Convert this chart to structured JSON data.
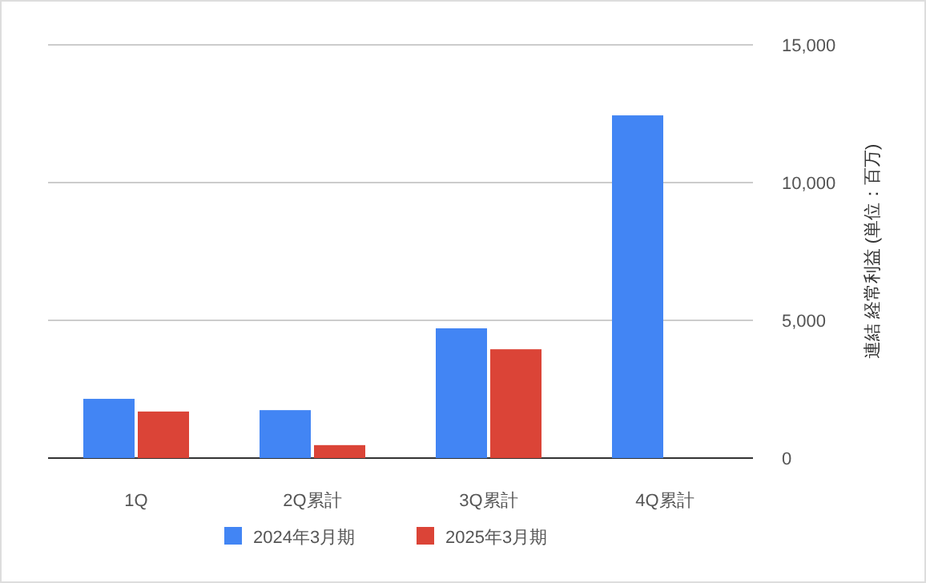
{
  "chart_data": {
    "type": "bar",
    "categories": [
      "1Q",
      "2Q累計",
      "3Q累計",
      "4Q累計"
    ],
    "series": [
      {
        "name": "2024年3月期",
        "color": "#4285f4",
        "values": [
          2150,
          1740,
          4710,
          12440
        ]
      },
      {
        "name": "2025年3月期",
        "color": "#db4437",
        "values": [
          1690,
          470,
          3950,
          null
        ]
      }
    ],
    "ylabel": "連結 経常利益 (単位：百万)",
    "ylim": [
      0,
      15000
    ],
    "yticks": [
      {
        "value": 0,
        "label": "0"
      },
      {
        "value": 5000,
        "label": "5,000"
      },
      {
        "value": 10000,
        "label": "10,000"
      },
      {
        "value": 15000,
        "label": "15,000"
      }
    ],
    "grid": "y",
    "legend": "bottom"
  }
}
